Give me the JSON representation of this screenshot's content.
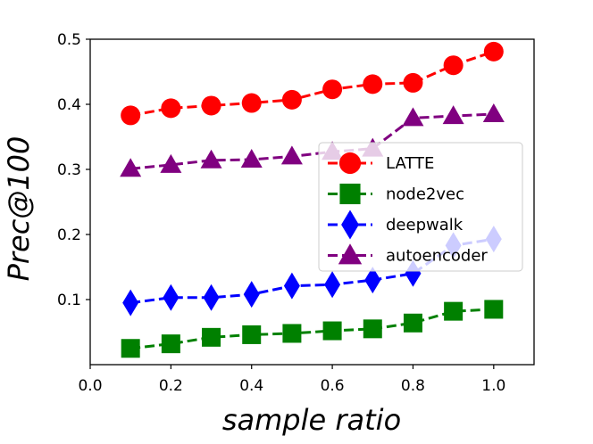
{
  "chart_data": {
    "type": "line",
    "title": "",
    "xlabel": "sample ratio",
    "ylabel": "Prec@100",
    "xlim": [
      0.0,
      1.1
    ],
    "ylim": [
      0.0,
      0.5
    ],
    "xticks": [
      0.0,
      0.2,
      0.4,
      0.6,
      0.8,
      1.0
    ],
    "xtick_labels": [
      "0.0",
      "0.2",
      "0.4",
      "0.6",
      "0.8",
      "1.0"
    ],
    "yticks": [
      0.1,
      0.2,
      0.3,
      0.4,
      0.5
    ],
    "ytick_labels": [
      "0.1",
      "0.2",
      "0.3",
      "0.4",
      "0.5"
    ],
    "grid": false,
    "legend_position": "center-right",
    "x": [
      0.1,
      0.2,
      0.3,
      0.4,
      0.5,
      0.6,
      0.7,
      0.8,
      0.9,
      1.0
    ],
    "series": [
      {
        "name": "LATTE",
        "color": "#ff0000",
        "marker": "circle",
        "values": [
          0.383,
          0.394,
          0.398,
          0.402,
          0.407,
          0.423,
          0.431,
          0.433,
          0.46,
          0.481
        ]
      },
      {
        "name": "node2vec",
        "color": "#008000",
        "marker": "square",
        "values": [
          0.025,
          0.032,
          0.042,
          0.046,
          0.048,
          0.052,
          0.055,
          0.064,
          0.082,
          0.085
        ]
      },
      {
        "name": "deepwalk",
        "color": "#0000ff",
        "marker": "diamond",
        "values": [
          0.095,
          0.103,
          0.103,
          0.108,
          0.121,
          0.123,
          0.13,
          0.14,
          0.183,
          0.193
        ]
      },
      {
        "name": "autoencoder",
        "color": "#800080",
        "marker": "triangle",
        "values": [
          0.301,
          0.307,
          0.314,
          0.315,
          0.32,
          0.327,
          0.332,
          0.379,
          0.382,
          0.385
        ]
      }
    ]
  }
}
